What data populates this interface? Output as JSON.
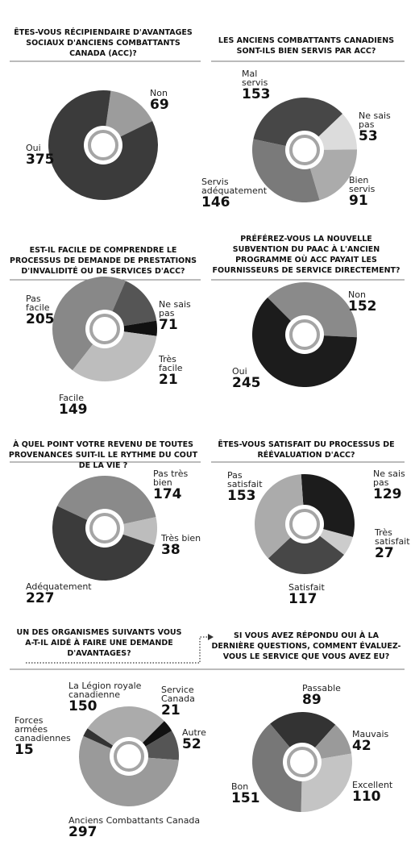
{
  "chart_data": [
    {
      "type": "pie",
      "title": "ÊTES-VOUS RÉCIPIENDAIRE D'AVANTAGES SOCIAUX D'ANCIENS COMBATTANTS CANADA (ACC)?",
      "categories": [
        "Non",
        "Oui"
      ],
      "values": [
        69,
        375
      ],
      "colors": [
        "#9c9c9c",
        "#3b3b3b"
      ]
    },
    {
      "type": "pie",
      "title": "LES ANCIENS COMBATTANTS CANADIENS SONT-ILS BIEN SERVIS PAR ACC?",
      "categories": [
        "Mal servis",
        "Ne sais pas",
        "Bien servis",
        "Servis adéquatement"
      ],
      "values": [
        153,
        53,
        91,
        146
      ],
      "colors": [
        "#474747",
        "#dcdcdc",
        "#ababab",
        "#7a7a7a"
      ]
    },
    {
      "type": "pie",
      "title": "EST-IL FACILE DE COMPRENDRE LE PROCESSUS DE DEMANDE DE PRESTATIONS D'INVALIDITÉ OU DE SERVICES D'ACC?",
      "categories": [
        "Pas facile",
        "Ne sais pas",
        "Très facile",
        "Facile"
      ],
      "values": [
        205,
        71,
        21,
        149
      ],
      "colors": [
        "#888888",
        "#555555",
        "#111111",
        "#bdbdbd"
      ]
    },
    {
      "type": "pie",
      "title": "PRÉFÉREZ-VOUS LA NOUVELLE SUBVENTION DU PAAC À L'ANCIEN PROGRAMME OÙ ACC PAYAIT LES FOURNISSEURS DE SERVICE DIRECTEMENT?",
      "categories": [
        "Non",
        "Oui"
      ],
      "values": [
        152,
        245
      ],
      "colors": [
        "#8a8a8a",
        "#1c1c1c"
      ]
    },
    {
      "type": "pie",
      "title": "À QUEL POINT VOTRE REVENU DE TOUTES PROVENANCES SUIT-IL LE RYTHME DU COUT DE LA VIE ?",
      "categories": [
        "Pas très bien",
        "Très bien",
        "Adéquatement"
      ],
      "values": [
        174,
        38,
        227
      ],
      "colors": [
        "#8a8a8a",
        "#bdbdbd",
        "#3b3b3b"
      ]
    },
    {
      "type": "pie",
      "title": "ÊTES-VOUS SATISFAIT DU PROCESSUS DE RÉÉVALUATION D'ACC?",
      "categories": [
        "Ne sais pas",
        "Très satisfait",
        "Satisfait",
        "Pas satisfait"
      ],
      "values": [
        129,
        27,
        117,
        153
      ],
      "colors": [
        "#1c1c1c",
        "#cccccc",
        "#474747",
        "#ababab"
      ]
    },
    {
      "type": "pie",
      "title": "UN DES ORGANISMES SUIVANTS VOUS A-T-IL AIDÉ À FAIRE UNE DEMANDE D'AVANTAGES?",
      "categories": [
        "Service Canada",
        "Autre",
        "Anciens Combattants Canada",
        "Forces armées canadiennes",
        "La Légion royale canadienne"
      ],
      "values": [
        21,
        52,
        297,
        15,
        150
      ],
      "colors": [
        "#111111",
        "#555555",
        "#9a9a9a",
        "#333333",
        "#ababab"
      ]
    },
    {
      "type": "pie",
      "title": "SI VOUS AVEZ RÉPONDU OUI À LA DERNIÈRE QUESTIONS, COMMENT ÉVALUEZ-VOUS LE SERVICE QUE VOUS AVEZ EU?",
      "categories": [
        "Passable",
        "Mauvais",
        "Excellent",
        "Bon"
      ],
      "values": [
        89,
        42,
        110,
        151
      ],
      "colors": [
        "#333333",
        "#9a9a9a",
        "#c4c4c4",
        "#777777"
      ]
    }
  ]
}
